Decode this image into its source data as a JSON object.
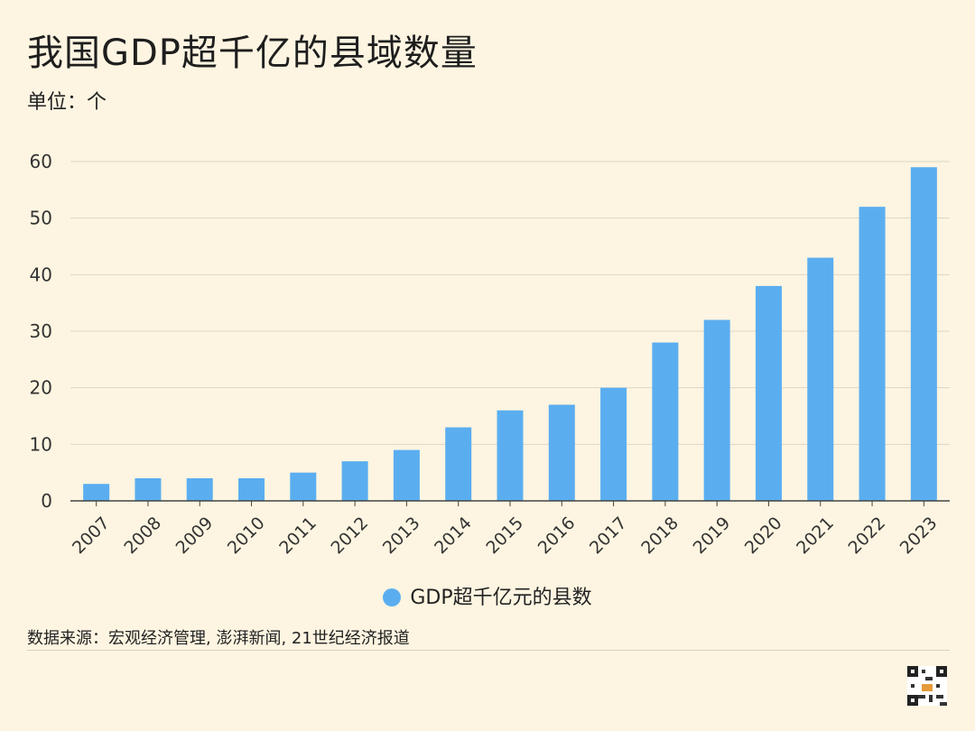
{
  "title": "我国GDP超千亿的县域数量",
  "unit": "单位：个",
  "source": "数据来源：宏观经济管理, 澎湃新闻, 21世纪经济报道",
  "colors": {
    "bar": "#5aaef0",
    "grid": "#dcd6c6",
    "axis": "#444444"
  },
  "chart_data": {
    "type": "bar",
    "title": "我国GDP超千亿的县域数量",
    "xlabel": "",
    "ylabel": "单位：个",
    "ylim": [
      0,
      60
    ],
    "yticks": [
      0,
      10,
      20,
      30,
      40,
      50,
      60
    ],
    "categories": [
      "2007",
      "2008",
      "2009",
      "2010",
      "2011",
      "2012",
      "2013",
      "2014",
      "2015",
      "2016",
      "2017",
      "2018",
      "2019",
      "2020",
      "2021",
      "2022",
      "2023"
    ],
    "series": [
      {
        "name": "GDP超千亿元的县数",
        "values": [
          3,
          4,
          4,
          4,
          5,
          7,
          9,
          13,
          16,
          17,
          20,
          28,
          32,
          38,
          43,
          52,
          59
        ]
      }
    ],
    "legend_position": "bottom",
    "grid": true
  }
}
